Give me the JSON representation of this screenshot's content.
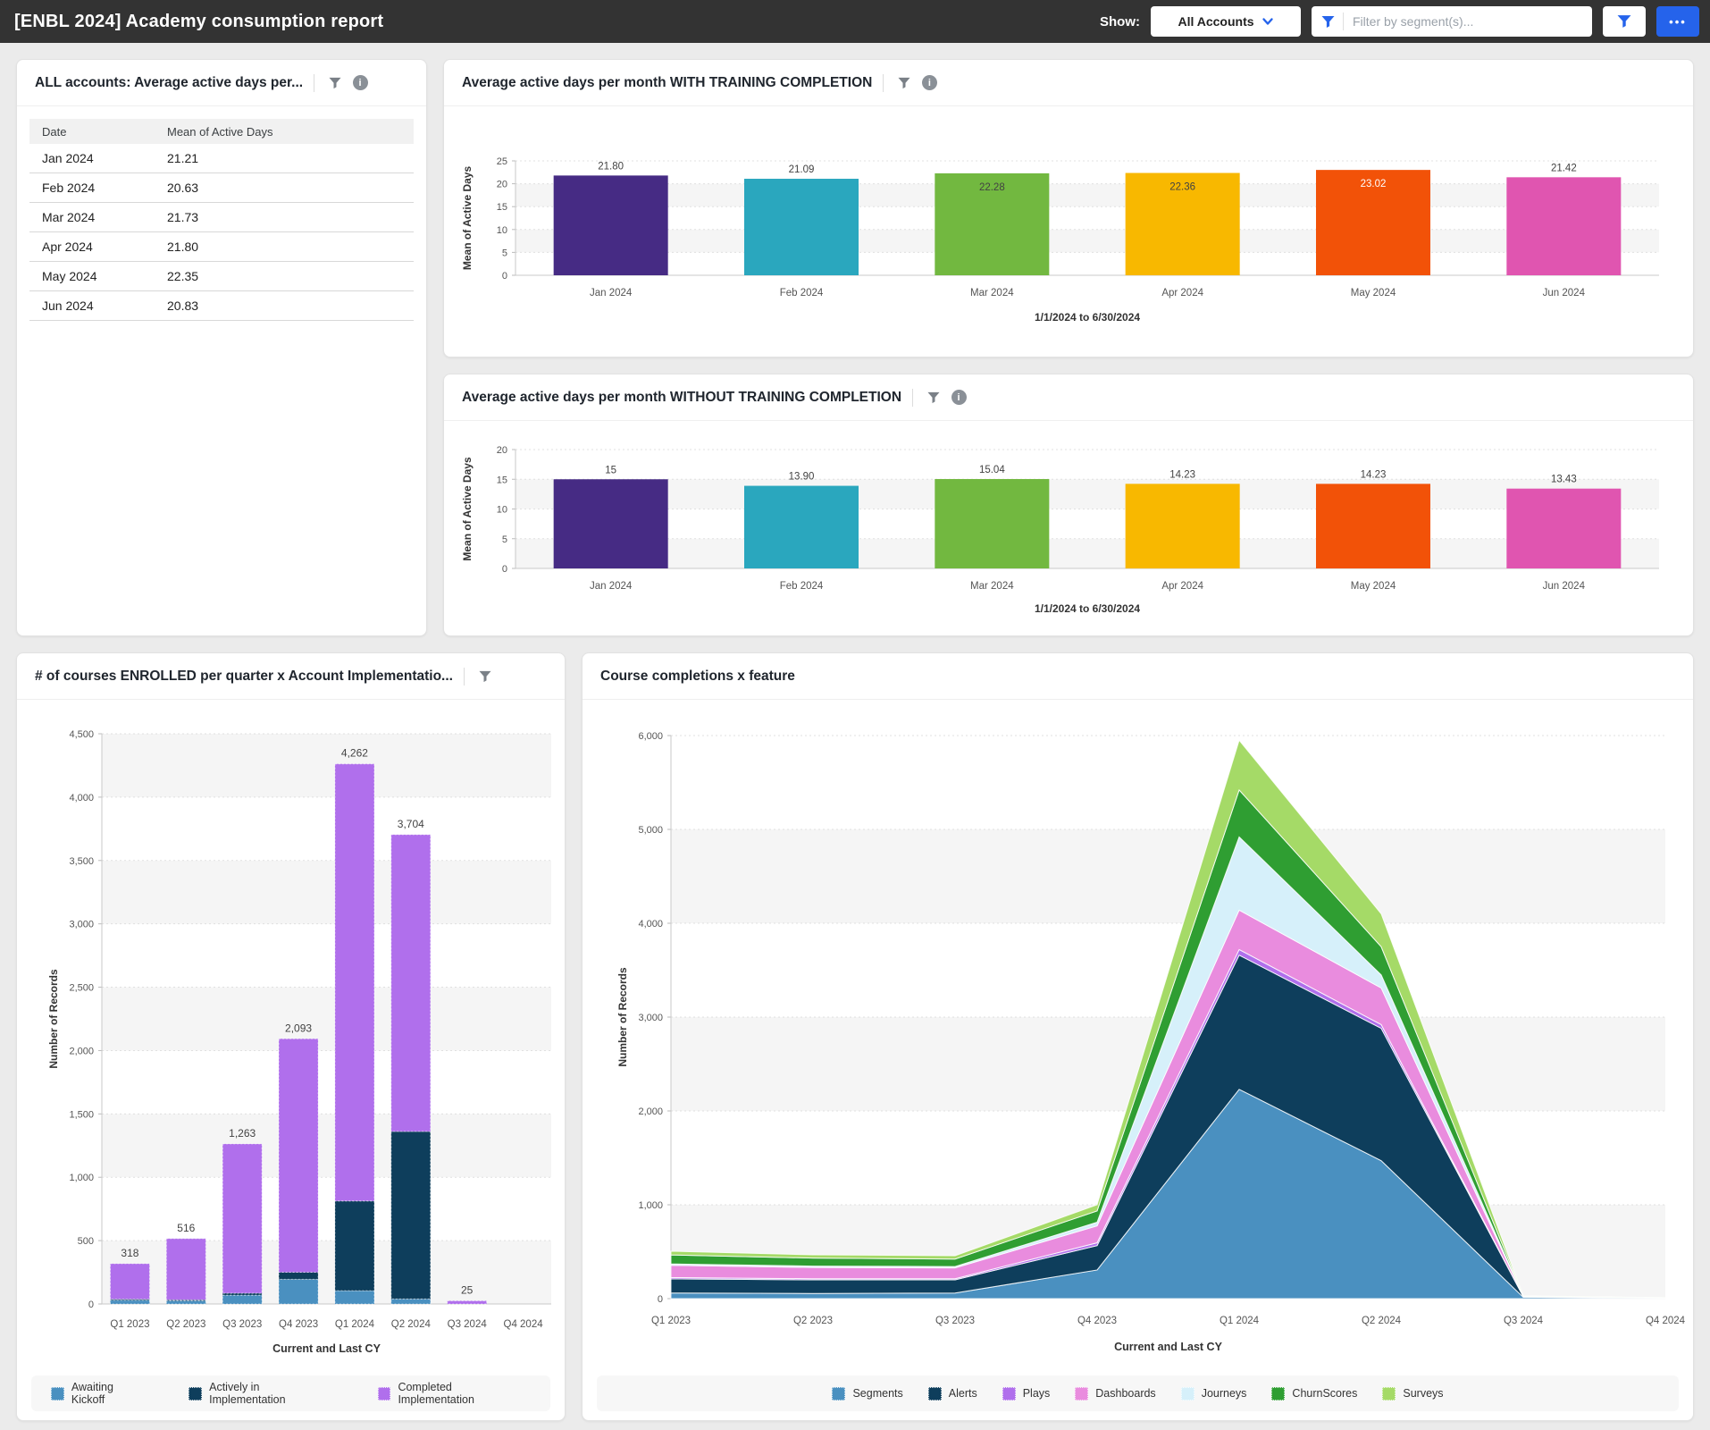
{
  "header": {
    "title": "[ENBL 2024] Academy consumption report",
    "show_label": "Show:",
    "account_selector": {
      "value": "All Accounts"
    },
    "segment_filter": {
      "placeholder": "Filter by segment(s)..."
    },
    "more_button_label": "•••",
    "icons": {
      "account_chevron": "chevron-down",
      "segment_filter": "funnel",
      "filter_button": "funnel",
      "more_button": "ellipsis"
    },
    "colors": {
      "bar_bg": "#333333",
      "accent_blue": "#2563eb"
    }
  },
  "card_icons": {
    "filter": "funnel",
    "info": "info"
  },
  "table_card": {
    "title": "ALL accounts: Average active days per...",
    "columns": [
      "Date",
      "Mean of Active Days"
    ],
    "rows": [
      [
        "Jan 2024",
        "21.21"
      ],
      [
        "Feb 2024",
        "20.63"
      ],
      [
        "Mar 2024",
        "21.73"
      ],
      [
        "Apr 2024",
        "21.80"
      ],
      [
        "May 2024",
        "22.35"
      ],
      [
        "Jun 2024",
        "20.83"
      ]
    ]
  },
  "chart_data": [
    {
      "id": "with_training",
      "type": "bar",
      "title": "Average active days per month WITH TRAINING COMPLETION",
      "categories": [
        "Jan 2024",
        "Feb 2024",
        "Mar 2024",
        "Apr 2024",
        "May 2024",
        "Jun 2024"
      ],
      "values": [
        21.8,
        21.09,
        22.28,
        22.36,
        23.02,
        21.42
      ],
      "labels": [
        "21.80",
        "21.09",
        "22.28",
        "22.36",
        "23.02",
        "21.42"
      ],
      "label_inside": [
        false,
        false,
        true,
        true,
        true,
        false
      ],
      "label_colors": [
        "#424242",
        "#424242",
        "#424242",
        "#424242",
        "#ffffff",
        "#424242"
      ],
      "bar_colors": [
        "#462B84",
        "#2AA7BE",
        "#72B840",
        "#F8B800",
        "#F25208",
        "#E055B0"
      ],
      "ylabel": "Mean of Active Days",
      "ylim": [
        0,
        25
      ],
      "ytick_step": 5,
      "grid": true,
      "footer": "1/1/2024 to 6/30/2024"
    },
    {
      "id": "without_training",
      "type": "bar",
      "title": "Average active days per month WITHOUT TRAINING COMPLETION",
      "categories": [
        "Jan 2024",
        "Feb 2024",
        "Mar 2024",
        "Apr 2024",
        "May 2024",
        "Jun 2024"
      ],
      "values": [
        15,
        13.9,
        15.04,
        14.23,
        14.23,
        13.43
      ],
      "labels": [
        "15",
        "13.90",
        "15.04",
        "14.23",
        "14.23",
        "13.43"
      ],
      "label_inside": [
        false,
        false,
        false,
        false,
        false,
        false
      ],
      "label_colors": [
        "#424242",
        "#424242",
        "#424242",
        "#424242",
        "#424242",
        "#424242"
      ],
      "bar_colors": [
        "#462B84",
        "#2AA7BE",
        "#72B840",
        "#F8B800",
        "#F25208",
        "#E055B0"
      ],
      "ylabel": "Mean of Active Days",
      "ylim": [
        0,
        20
      ],
      "ytick_step": 5,
      "grid": true,
      "footer": "1/1/2024 to 6/30/2024"
    },
    {
      "id": "enrolled_per_quarter",
      "type": "bar",
      "stacked": true,
      "title": "# of courses ENROLLED per quarter x Account Implementatio...",
      "categories": [
        "Q1 2023",
        "Q2 2023",
        "Q3 2023",
        "Q4 2023",
        "Q1 2024",
        "Q2 2024",
        "Q3 2024",
        "Q4 2024"
      ],
      "series": [
        {
          "name": "Awaiting Kickoff",
          "color": "#4A90C0",
          "values": [
            30,
            25,
            70,
            195,
            105,
            40,
            0,
            0
          ]
        },
        {
          "name": "Actively in Implementation",
          "color": "#0E3E5C",
          "values": [
            8,
            8,
            15,
            55,
            708,
            1321,
            0,
            0
          ]
        },
        {
          "name": "Completed Implementation",
          "color": "#B06FEC",
          "values": [
            280,
            483,
            1178,
            1843,
            3449,
            2343,
            25,
            0
          ]
        }
      ],
      "totals": [
        "318",
        "516",
        "1,263",
        "2,093",
        "4,262",
        "3,704",
        "25",
        ""
      ],
      "ylabel": "Number of Records",
      "xlabel": "Current and Last CY",
      "ylim": [
        0,
        4500
      ],
      "ytick_step": 500,
      "grid": true,
      "legend_position": "bottom"
    },
    {
      "id": "completions_x_feature",
      "type": "area",
      "stacked": true,
      "title": "Course completions x feature",
      "categories": [
        "Q1 2023",
        "Q2 2023",
        "Q3 2023",
        "Q4 2023",
        "Q1 2024",
        "Q2 2024",
        "Q3 2024",
        "Q4 2024"
      ],
      "series": [
        {
          "name": "Segments",
          "color": "#4A90C0",
          "values": [
            60,
            55,
            60,
            305,
            2230,
            1470,
            15,
            5
          ]
        },
        {
          "name": "Alerts",
          "color": "#0E3E5C",
          "values": [
            150,
            145,
            140,
            260,
            1430,
            1410,
            5,
            2
          ]
        },
        {
          "name": "Plays",
          "color": "#B06FEC",
          "values": [
            15,
            12,
            12,
            30,
            60,
            40,
            1,
            1
          ]
        },
        {
          "name": "Dashboards",
          "color": "#E98CDE",
          "values": [
            130,
            120,
            115,
            180,
            420,
            390,
            3,
            1
          ]
        },
        {
          "name": "Journeys",
          "color": "#D6F0FA",
          "values": [
            15,
            15,
            15,
            40,
            780,
            140,
            1,
            0
          ]
        },
        {
          "name": "ChurnScores",
          "color": "#2F9E32",
          "values": [
            95,
            85,
            80,
            120,
            500,
            300,
            2,
            1
          ]
        },
        {
          "name": "Surveys",
          "color": "#A5DA67",
          "values": [
            40,
            35,
            35,
            65,
            530,
            350,
            3,
            1
          ]
        }
      ],
      "ylabel": "Number of Records",
      "xlabel": "Current and Last CY",
      "ylim": [
        0,
        6000
      ],
      "ytick_step": 1000,
      "grid": true,
      "legend_position": "bottom"
    }
  ]
}
